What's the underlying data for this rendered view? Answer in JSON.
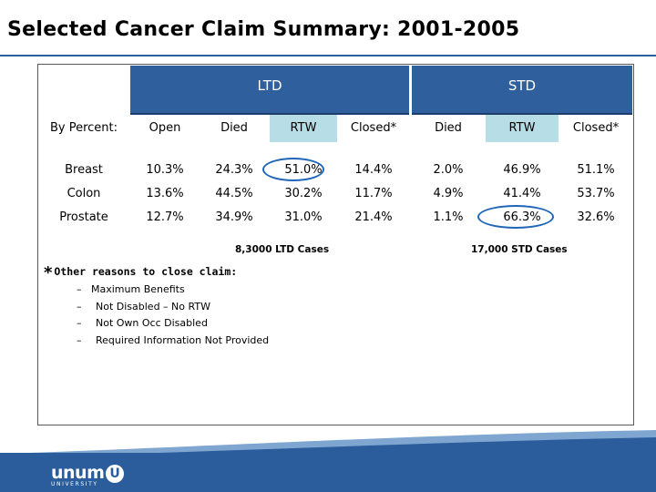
{
  "title": "Selected Cancer Claim Summary:  2001-2005",
  "table": {
    "groups": {
      "ltd": "LTD",
      "std": "STD"
    },
    "row_header": "By Percent:",
    "columns": [
      "Open",
      "Died",
      "RTW",
      "Closed*",
      "Died",
      "RTW",
      "Closed*"
    ],
    "rows": [
      {
        "label": "Breast",
        "values": [
          "10.3%",
          "24.3%",
          "51.0%",
          "14.4%",
          "2.0%",
          "46.9%",
          "51.1%"
        ]
      },
      {
        "label": "Colon",
        "values": [
          "13.6%",
          "44.5%",
          "30.2%",
          "11.7%",
          "4.9%",
          "41.4%",
          "53.7%"
        ]
      },
      {
        "label": "Prostate",
        "values": [
          "12.7%",
          "34.9%",
          "31.0%",
          "21.4%",
          "1.1%",
          "66.3%",
          "32.6%"
        ]
      }
    ],
    "ltd_cases": "8,3000  LTD Cases",
    "std_cases": "17,000 STD Cases"
  },
  "notes": {
    "star": "*",
    "title": "Other reasons to close claim:",
    "dash": "–",
    "items": [
      "Maximum Benefits",
      "Not Disabled – No RTW",
      "Not Own Occ Disabled",
      "Required Information Not Provided"
    ]
  },
  "footer": {
    "logo_word": "unum",
    "logo_badge": "U",
    "logo_sub": "UNIVERSITY"
  },
  "colors": {
    "header_bg": "#2f5f9d",
    "rtw_highlight": "#b7dde6",
    "circle": "#1f66b8",
    "footer_bg": "#2b5c9b"
  }
}
